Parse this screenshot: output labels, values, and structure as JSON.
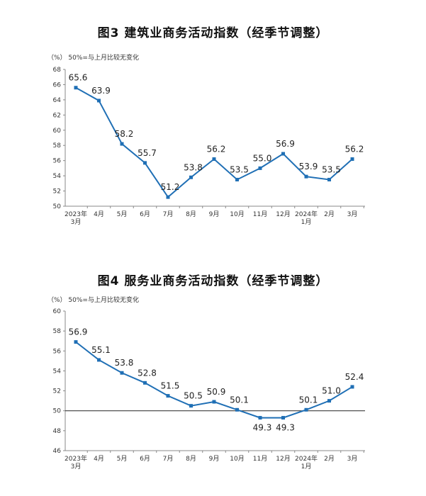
{
  "chart_data": [
    {
      "type": "line",
      "title": "图3  建筑业商务活动指数（经季节调整）",
      "unit_note": "（%）  50%=与上月比较无变化",
      "categories": [
        "2023年|3月",
        "4月",
        "5月",
        "6月",
        "7月",
        "8月",
        "9月",
        "10月",
        "11月",
        "12月",
        "2024年|1月",
        "2月",
        "3月"
      ],
      "series": [
        {
          "values": [
            65.6,
            63.9,
            58.2,
            55.7,
            51.2,
            53.8,
            56.2,
            53.5,
            55.0,
            56.9,
            53.9,
            53.5,
            56.2
          ],
          "labels": [
            "65.6",
            "63.9",
            "58.2",
            "55.7",
            "51.2",
            "53.8",
            "56.2",
            "53.5",
            "55.0",
            "56.9",
            "53.9",
            "53.5",
            "56.2"
          ]
        }
      ],
      "ylim": [
        50,
        68
      ],
      "ystep": 2,
      "reference_line": null,
      "color": "#1f6fb5"
    },
    {
      "type": "line",
      "title": "图4  服务业商务活动指数（经季节调整）",
      "unit_note": "（%）  50%=与上月比较无变化",
      "categories": [
        "2023年|3月",
        "4月",
        "5月",
        "6月",
        "7月",
        "8月",
        "9月",
        "10月",
        "11月",
        "12月",
        "2024年|1月",
        "2月",
        "3月"
      ],
      "series": [
        {
          "values": [
            56.9,
            55.1,
            53.8,
            52.8,
            51.5,
            50.5,
            50.9,
            50.1,
            49.3,
            49.3,
            50.1,
            51.0,
            52.4
          ],
          "labels": [
            "56.9",
            "55.1",
            "53.8",
            "52.8",
            "51.5",
            "50.5",
            "50.9",
            "50.1",
            "49.3",
            "49.3",
            "50.1",
            "51.0",
            "52.4"
          ]
        }
      ],
      "ylim": [
        46,
        60
      ],
      "ystep": 2,
      "reference_line": 50,
      "color": "#1f6fb5"
    }
  ]
}
